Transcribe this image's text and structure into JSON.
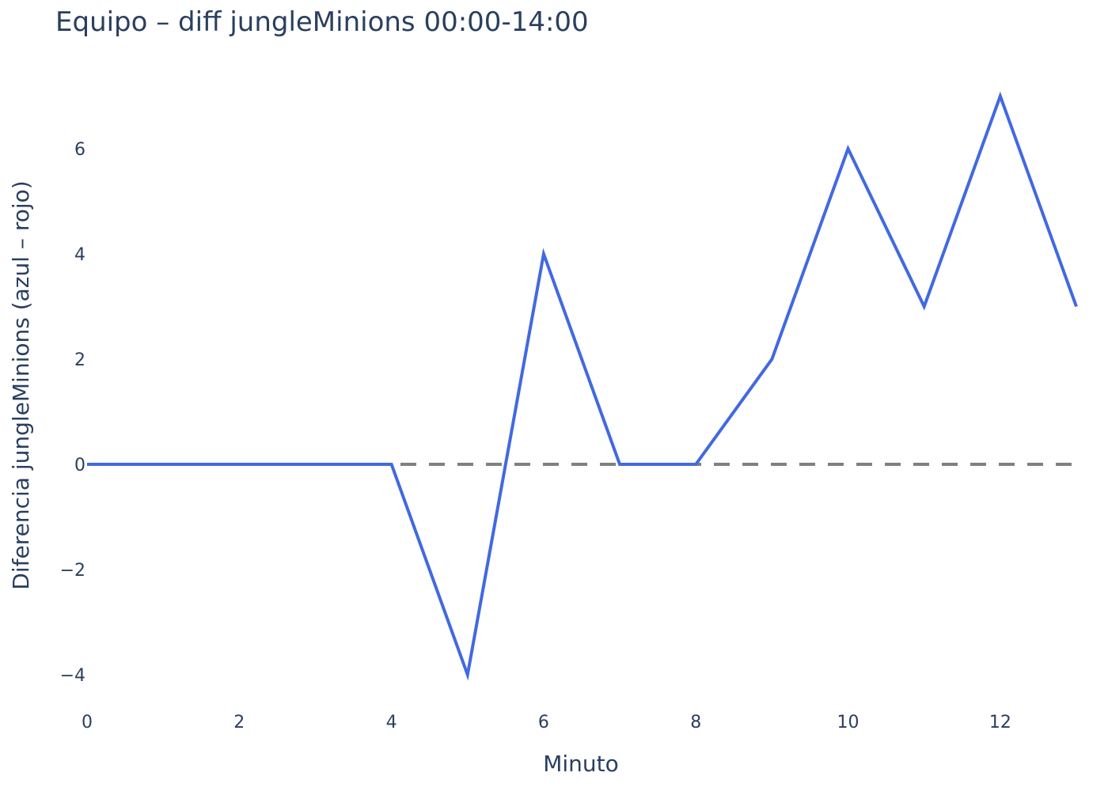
{
  "chart_data": {
    "type": "line",
    "title": "Equipo – diff jungleMinions 00:00-14:00",
    "xlabel": "Minuto",
    "ylabel": "Diferencia jungleMinions (azul – rojo)",
    "x": [
      0,
      1,
      2,
      3,
      4,
      5,
      6,
      7,
      8,
      9,
      10,
      11,
      12,
      13
    ],
    "series": [
      {
        "values": [
          0,
          0,
          0,
          0,
          0,
          -4,
          4,
          0,
          0,
          2,
          6,
          3,
          7,
          3
        ],
        "color": "#4169e1"
      }
    ],
    "reference_line": {
      "y": 0,
      "style": "dashed",
      "color": "#808080"
    },
    "xlim": [
      0,
      13
    ],
    "ylim": [
      -4.5,
      7.5
    ],
    "xticks": [
      0,
      2,
      4,
      6,
      8,
      10,
      12
    ],
    "yticks": [
      -4,
      -2,
      0,
      2,
      4,
      6
    ],
    "grid": false,
    "legend": "none"
  }
}
